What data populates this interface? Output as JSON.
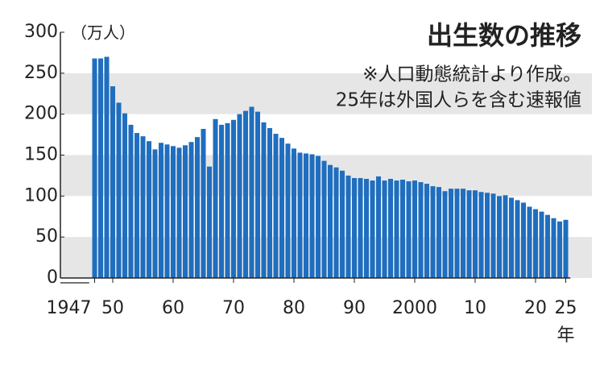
{
  "chart_data": {
    "type": "bar",
    "title": "出生数の推移",
    "notes": [
      "※人口動態統計より作成。",
      "25年は外国人らを含む速報値"
    ],
    "y_unit": "（万人）",
    "x_unit": "年",
    "color": "#1f6ebf",
    "band_color": "#e6e6e6",
    "bands": [
      [
        0,
        50
      ],
      [
        100,
        150
      ],
      [
        200,
        250
      ]
    ],
    "x": [
      1947,
      1948,
      1949,
      1950,
      1951,
      1952,
      1953,
      1954,
      1955,
      1956,
      1957,
      1958,
      1959,
      1960,
      1961,
      1962,
      1963,
      1964,
      1965,
      1966,
      1967,
      1968,
      1969,
      1970,
      1971,
      1972,
      1973,
      1974,
      1975,
      1976,
      1977,
      1978,
      1979,
      1980,
      1981,
      1982,
      1983,
      1984,
      1985,
      1986,
      1987,
      1988,
      1989,
      1990,
      1991,
      1992,
      1993,
      1994,
      1995,
      1996,
      1997,
      1998,
      1999,
      2000,
      2001,
      2002,
      2003,
      2004,
      2005,
      2006,
      2007,
      2008,
      2009,
      2010,
      2011,
      2012,
      2013,
      2014,
      2015,
      2016,
      2017,
      2018,
      2019,
      2020,
      2021,
      2022,
      2023,
      2024,
      2025
    ],
    "values": [
      268,
      268,
      270,
      234,
      214,
      201,
      187,
      177,
      173,
      167,
      157,
      165,
      163,
      161,
      159,
      162,
      166,
      172,
      182,
      136,
      194,
      187,
      189,
      193,
      200,
      204,
      209,
      203,
      190,
      183,
      176,
      171,
      164,
      158,
      153,
      152,
      151,
      149,
      143,
      138,
      135,
      131,
      125,
      122,
      122,
      121,
      119,
      124,
      119,
      121,
      119,
      120,
      118,
      119,
      117,
      115,
      112,
      111,
      106,
      109,
      109,
      109,
      107,
      107,
      105,
      104,
      103,
      100,
      101,
      98,
      95,
      92,
      87,
      84,
      81,
      77,
      73,
      69,
      71
    ],
    "xlim": [
      1946.5,
      2025.5
    ],
    "xticks": [
      {
        "value": 1947,
        "label": "1947"
      },
      {
        "value": 1950,
        "label": "50"
      },
      {
        "value": 1960,
        "label": "60"
      },
      {
        "value": 1970,
        "label": "70"
      },
      {
        "value": 1980,
        "label": "80"
      },
      {
        "value": 1990,
        "label": "90"
      },
      2000,
      {
        "value": 2010,
        "label": "10"
      },
      {
        "value": 2020,
        "label": "20"
      },
      {
        "value": 2025,
        "label": "25"
      }
    ],
    "ylim": [
      0,
      300
    ],
    "yticks": [
      0,
      50,
      100,
      150,
      200,
      250,
      300
    ]
  }
}
